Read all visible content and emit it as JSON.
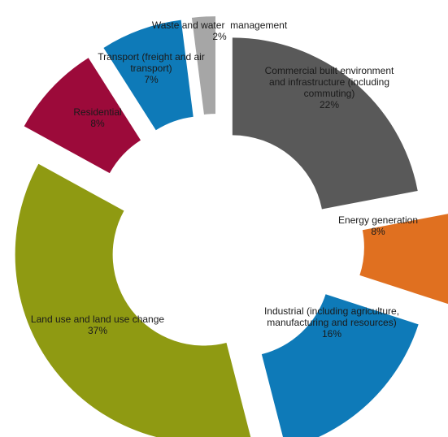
{
  "chart_data": {
    "type": "pie",
    "variant": "exploded-donut",
    "unit": "%",
    "slices": [
      {
        "name": "Commercial built environment and infrastructure (including commuting)",
        "label_lines": [
          "Commercial built environment",
          "and infrastructure (including",
          "commuting)"
        ],
        "value": 22,
        "value_label": "22%",
        "color": "#595959",
        "label_color": "#1a1a1a"
      },
      {
        "name": "Energy generation",
        "label_lines": [
          "Energy generation"
        ],
        "value": 8,
        "value_label": "8%",
        "color": "#e07020",
        "label_color": "#1a1a1a"
      },
      {
        "name": "Industrial (including agriculture, manufacturing and resources)",
        "label_lines": [
          "Industrial (including agriculture,",
          "manufacturing and resources)"
        ],
        "value": 16,
        "value_label": "16%",
        "color": "#0e7ab8",
        "label_color": "#1a1a1a"
      },
      {
        "name": "Land use and land use change",
        "label_lines": [
          "Land use and land use change"
        ],
        "value": 37,
        "value_label": "37%",
        "color": "#8f9a12",
        "label_color": "#1a1a1a"
      },
      {
        "name": "Residential",
        "label_lines": [
          "Residential"
        ],
        "value": 8,
        "value_label": "8%",
        "color": "#9c0a3a",
        "label_color": "#1a1a1a"
      },
      {
        "name": "Transport (freight and air transport)",
        "label_lines": [
          "Transport (freight and air",
          "transport)"
        ],
        "value": 7,
        "value_label": "7%",
        "color": "#0e7ab8",
        "label_color": "#1a1a1a"
      },
      {
        "name": "Waste and water management",
        "label_lines": [
          "Waste and water  management"
        ],
        "value": 2,
        "value_label": "2%",
        "color": "#a6a6a6",
        "label_color": "#1a1a1a"
      }
    ]
  }
}
